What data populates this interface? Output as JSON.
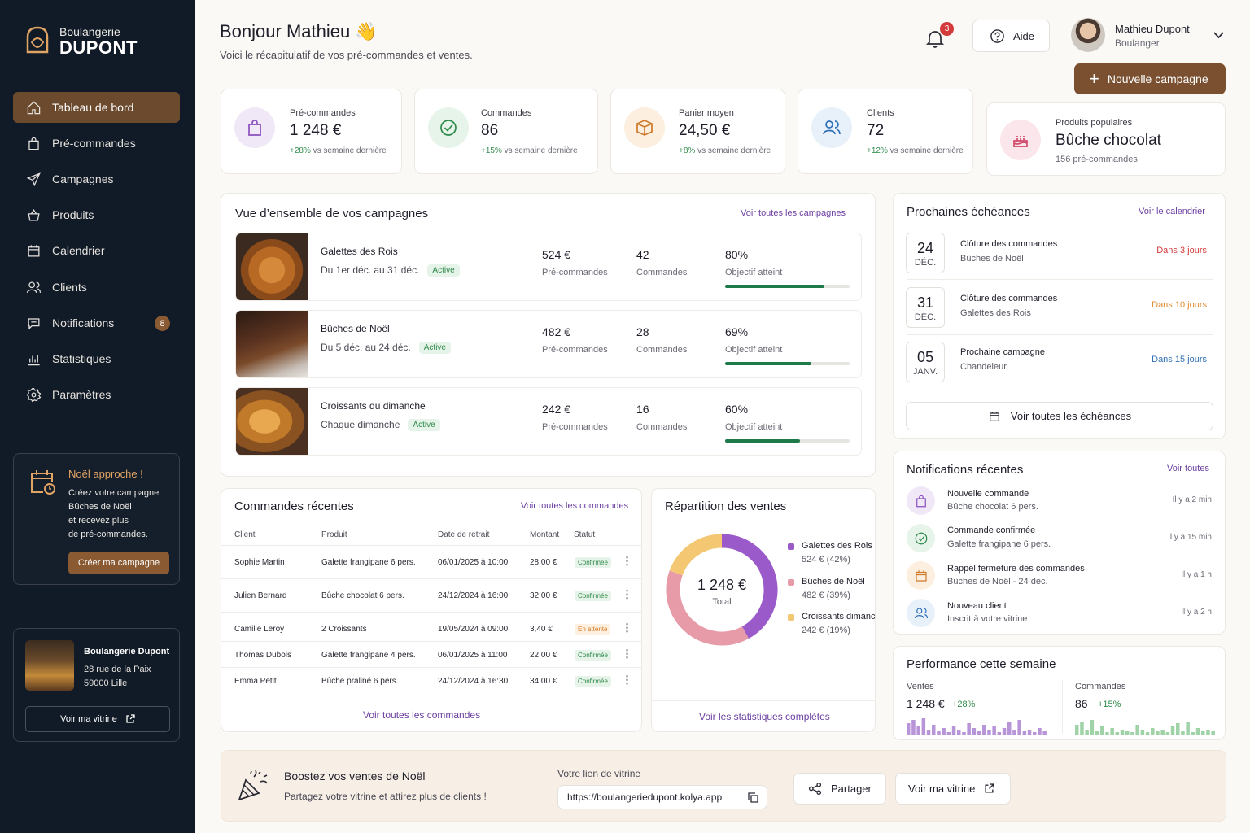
{
  "colors": {
    "accent": "#7a5030",
    "sidebar_bg": "#111a27",
    "success": "#2e8a4a",
    "danger": "#d33a3a",
    "warning": "#d77a20",
    "info": "#2f6fb8",
    "purple": "#6b3fa0"
  },
  "brand": {
    "line1": "Boulangerie",
    "line2": "DUPONT"
  },
  "sidebar": {
    "items": [
      {
        "label": "Tableau de bord",
        "icon": "home-icon"
      },
      {
        "label": "Pré-commandes",
        "icon": "bag-icon"
      },
      {
        "label": "Campagnes",
        "icon": "send-icon"
      },
      {
        "label": "Produits",
        "icon": "basket-icon"
      },
      {
        "label": "Calendrier",
        "icon": "calendar-icon"
      },
      {
        "label": "Clients",
        "icon": "users-icon"
      },
      {
        "label": "Notifications",
        "icon": "chat-icon",
        "badge": "8"
      },
      {
        "label": "Statistiques",
        "icon": "chart-icon"
      },
      {
        "label": "Paramètres",
        "icon": "gear-icon"
      }
    ]
  },
  "promo": {
    "title": "Noël approche !",
    "l1": "Créez votre campagne",
    "l2": "Bûches de Noël",
    "l3": "et recevez plus",
    "l4": "de pré-commandes.",
    "button": "Créer ma campagne"
  },
  "store": {
    "name": "Boulangerie Dupont",
    "addr1": "28 rue de la Paix",
    "addr2": "59000 Lille",
    "button": "Voir ma vitrine"
  },
  "header": {
    "greeting": "Bonjour Mathieu 👋",
    "subtitle": "Voici le récapitulatif de vos pré-commandes et ventes.",
    "bell_count": "3",
    "help": "Aide",
    "user_name": "Mathieu Dupont",
    "user_role": "Boulanger",
    "new_campaign": "Nouvelle campagne"
  },
  "kpis": [
    {
      "label": "Pré-commandes",
      "value": "1 248 €",
      "delta": "+28%",
      "delta_text": "vs semaine dernière"
    },
    {
      "label": "Commandes",
      "value": "86",
      "delta": "+15%",
      "delta_text": "vs semaine dernière"
    },
    {
      "label": "Panier moyen",
      "value": "24,50 €",
      "delta": "+8%",
      "delta_text": "vs semaine dernière"
    },
    {
      "label": "Clients",
      "value": "72",
      "delta": "+12%",
      "delta_text": "vs semaine dernière"
    }
  ],
  "popular": {
    "label": "Produits populaires",
    "value": "Bûche chocolat",
    "sub": "156 pré-commandes"
  },
  "campaigns": {
    "title": "Vue d’ensemble de vos campagnes",
    "link": "Voir toutes les campagnes",
    "sub_pre": "Pré-commandes",
    "sub_cmd": "Commandes",
    "sub_goal": "Objectif atteint",
    "rows": [
      {
        "name": "Galettes des Rois",
        "date": "Du 1er déc. au 31 déc.",
        "status": "Active",
        "pre": "524 €",
        "cmd": "42",
        "goal": "80%",
        "progress": 0.8
      },
      {
        "name": "Bûches de Noël",
        "date": "Du 5 déc. au 24 déc.",
        "status": "Active",
        "pre": "482 €",
        "cmd": "28",
        "goal": "69%",
        "progress": 0.69
      },
      {
        "name": "Croissants du dimanche",
        "date": "Chaque dimanche",
        "status": "Active",
        "pre": "242 €",
        "cmd": "16",
        "goal": "60%",
        "progress": 0.6
      }
    ]
  },
  "orders": {
    "title": "Commandes récentes",
    "link": "Voir toutes les commandes",
    "footer": "Voir toutes les commandes",
    "headers": [
      "Client",
      "Produit",
      "Date de retrait",
      "Montant",
      "Statut"
    ],
    "rows": [
      {
        "client": "Sophie Martin",
        "product": "Galette frangipane 6 pers.",
        "date": "06/01/2025 à 10:00",
        "amount": "28,00 €",
        "status": "Confirmée",
        "state": "ok"
      },
      {
        "client": "Julien Bernard",
        "product": "Bûche chocolat 6 pers.",
        "date": "24/12/2024 à 16:00",
        "amount": "32,00 €",
        "status": "Confirmée",
        "state": "ok"
      },
      {
        "client": "Camille Leroy",
        "product": "2 Croissants",
        "date": "19/05/2024 à 09:00",
        "amount": "3,40 €",
        "status": "En attente",
        "state": "wait"
      },
      {
        "client": "Thomas Dubois",
        "product": "Galette frangipane 4 pers.",
        "date": "06/01/2025 à 11:00",
        "amount": "22,00 €",
        "status": "Confirmée",
        "state": "ok"
      },
      {
        "client": "Emma Petit",
        "product": "Bûche praliné 6 pers.",
        "date": "24/12/2024 à 16:30",
        "amount": "34,00 €",
        "status": "Confirmée",
        "state": "ok"
      }
    ]
  },
  "sales": {
    "title": "Répartition des ventes",
    "total": "1 248 €",
    "total_label": "Total",
    "footer": "Voir les statistiques complètes"
  },
  "chart_data": {
    "type": "pie",
    "title": "Répartition des ventes",
    "categories": [
      "Galettes des Rois",
      "Bûches de Noël",
      "Croissants dimanche"
    ],
    "values": [
      524,
      482,
      242
    ],
    "labels": [
      "524 € (42%)",
      "482 € (39%)",
      "242 € (19%)"
    ],
    "percent": [
      42,
      39,
      19
    ],
    "colors": [
      "#9b5ac9",
      "#e79aa8",
      "#f4c772"
    ],
    "legend": "right"
  },
  "deadlines": {
    "title": "Prochaines échéances",
    "link": "Voir le calendrier",
    "button": "Voir toutes les échéances",
    "items": [
      {
        "day": "24",
        "month": "DÉC.",
        "title": "Clôture des commandes",
        "sub": "Bûches de Noël",
        "when": "Dans 3 jours",
        "color": "#d33a3a"
      },
      {
        "day": "31",
        "month": "DÉC.",
        "title": "Clôture des commandes",
        "sub": "Galettes des Rois",
        "when": "Dans 10 jours",
        "color": "#e08a2a"
      },
      {
        "day": "05",
        "month": "JANV.",
        "title": "Prochaine campagne",
        "sub": "Chandeleur",
        "when": "Dans 15 jours",
        "color": "#2f6fb8"
      }
    ]
  },
  "notifications": {
    "title": "Notifications récentes",
    "link": "Voir toutes",
    "items": [
      {
        "title": "Nouvelle commande",
        "sub": "Bûche chocolat 6 pers.",
        "time": "Il y a 2 min"
      },
      {
        "title": "Commande confirmée",
        "sub": "Galette frangipane 6 pers.",
        "time": "Il y a 15 min"
      },
      {
        "title": "Rappel fermeture des commandes",
        "sub": "Bûches de Noël - 24 déc.",
        "time": "Il y a 1 h"
      },
      {
        "title": "Nouveau client",
        "sub": "Inscrit à votre vitrine",
        "time": "Il y a 2 h"
      }
    ]
  },
  "performance": {
    "title": "Performance cette semaine",
    "sales_label": "Ventes",
    "sales_value": "1 248 €",
    "sales_delta": "+28%",
    "orders_label": "Commandes",
    "orders_value": "86",
    "orders_delta": "+15%"
  },
  "boost": {
    "title": "Boostez vos ventes de Noël",
    "sub": "Partagez votre vitrine et attirez plus de clients !",
    "link_label": "Votre lien de vitrine",
    "url": "https://boulangeriedupont.kolya.app",
    "share": "Partager",
    "view": "Voir ma vitrine"
  }
}
